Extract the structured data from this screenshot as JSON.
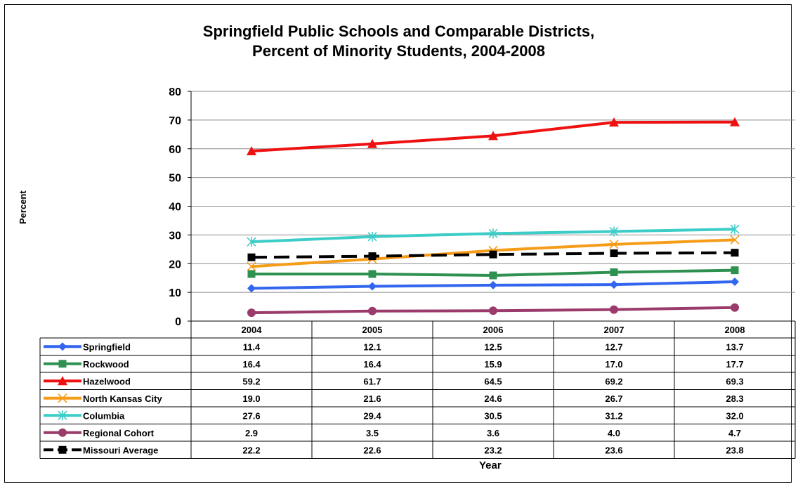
{
  "chart_data": {
    "type": "line",
    "title": "Springfield Public Schools and Comparable Districts, Percent of Minority Students, 2004-2008",
    "title_lines": [
      "Springfield Public Schools and Comparable Districts,",
      "Percent of Minority Students, 2004-2008"
    ],
    "xlabel": "Year",
    "ylabel": "Percent",
    "ylim": [
      0,
      80
    ],
    "yticks": [
      "0",
      "10",
      "20",
      "30",
      "40",
      "50",
      "60",
      "70",
      "80"
    ],
    "categories": [
      "2004",
      "2005",
      "2006",
      "2007",
      "2008"
    ],
    "grid": "horizontal",
    "legend": "data-table",
    "series": [
      {
        "name": "Springfield",
        "values": [
          11.4,
          12.1,
          12.5,
          12.7,
          13.7
        ],
        "labels": [
          "11.4",
          "12.1",
          "12.5",
          "12.7",
          "13.7"
        ],
        "color": "#3366ee",
        "marker": "diamond",
        "dash": false
      },
      {
        "name": "Rockwood",
        "values": [
          16.4,
          16.4,
          15.9,
          17.0,
          17.7
        ],
        "labels": [
          "16.4",
          "16.4",
          "15.9",
          "17.0",
          "17.7"
        ],
        "color": "#2e9150",
        "marker": "square",
        "dash": false
      },
      {
        "name": "Hazelwood",
        "values": [
          59.2,
          61.7,
          64.5,
          69.2,
          69.3
        ],
        "labels": [
          "59.2",
          "61.7",
          "64.5",
          "69.2",
          "69.3"
        ],
        "color": "#ee1111",
        "marker": "triangle",
        "dash": false
      },
      {
        "name": "North Kansas City",
        "values": [
          19.0,
          21.6,
          24.6,
          26.7,
          28.3
        ],
        "labels": [
          "19.0",
          "21.6",
          "24.6",
          "26.7",
          "28.3"
        ],
        "color": "#f59c18",
        "marker": "x",
        "dash": false
      },
      {
        "name": "Columbia",
        "values": [
          27.6,
          29.4,
          30.5,
          31.2,
          32.0
        ],
        "labels": [
          "27.6",
          "29.4",
          "30.5",
          "31.2",
          "32.0"
        ],
        "color": "#3ccdc8",
        "marker": "star",
        "dash": false
      },
      {
        "name": "Regional Cohort",
        "values": [
          2.9,
          3.5,
          3.6,
          4.0,
          4.7
        ],
        "labels": [
          "2.9",
          "3.5",
          "3.6",
          "4.0",
          "4.7"
        ],
        "color": "#9b3b6b",
        "marker": "circle",
        "dash": false
      },
      {
        "name": "Missouri Average",
        "values": [
          22.2,
          22.6,
          23.2,
          23.6,
          23.8
        ],
        "labels": [
          "22.2",
          "22.6",
          "23.2",
          "23.6",
          "23.8"
        ],
        "color": "#000000",
        "marker": "square",
        "dash": true
      }
    ]
  }
}
